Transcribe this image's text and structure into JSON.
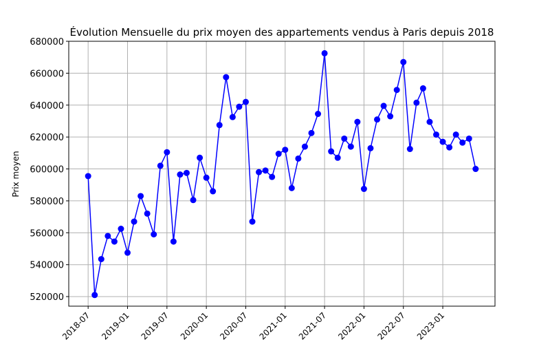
{
  "chart_data": {
    "type": "line",
    "title": "Évolution Mensuelle du prix moyen des appartements vendus à Paris depuis 2018",
    "xlabel": "",
    "ylabel": "Prix moyen",
    "ylim": [
      514000,
      680000
    ],
    "grid": true,
    "series_color": "#0000ff",
    "x_tick_labels": [
      "2018-07",
      "2019-01",
      "2019-07",
      "2020-01",
      "2020-07",
      "2021-01",
      "2021-07",
      "2022-01",
      "2022-07",
      "2023-01"
    ],
    "y_tick_labels": [
      "520000",
      "540000",
      "560000",
      "580000",
      "600000",
      "620000",
      "640000",
      "660000",
      "680000"
    ],
    "series": [
      {
        "x": [
          "2018-07",
          "2018-08",
          "2018-09",
          "2018-10",
          "2018-11",
          "2018-12",
          "2019-01",
          "2019-02",
          "2019-03",
          "2019-04",
          "2019-05",
          "2019-06",
          "2019-07",
          "2019-08",
          "2019-09",
          "2019-10",
          "2019-11",
          "2019-12",
          "2020-01",
          "2020-02",
          "2020-03",
          "2020-04",
          "2020-05",
          "2020-06",
          "2020-07",
          "2020-08",
          "2020-09",
          "2020-10",
          "2020-11",
          "2020-12",
          "2021-01",
          "2021-02",
          "2021-03",
          "2021-04",
          "2021-05",
          "2021-06",
          "2021-07",
          "2021-08",
          "2021-09",
          "2021-10",
          "2021-11",
          "2021-12",
          "2022-01",
          "2022-02",
          "2022-03",
          "2022-04",
          "2022-05",
          "2022-06",
          "2022-07",
          "2022-08",
          "2022-09",
          "2022-10",
          "2022-11",
          "2022-12",
          "2023-01",
          "2023-02",
          "2023-03",
          "2023-04",
          "2023-05",
          "2023-06"
        ],
        "values": [
          595500,
          521000,
          543500,
          558000,
          554500,
          562500,
          547500,
          567000,
          583000,
          572000,
          559000,
          602000,
          610500,
          554500,
          596500,
          597500,
          580500,
          607000,
          594500,
          586000,
          627500,
          657500,
          632500,
          639000,
          642000,
          567000,
          598000,
          599000,
          595000,
          609500,
          612000,
          588000,
          606500,
          614000,
          622500,
          634500,
          672500,
          611000,
          607000,
          619000,
          614000,
          629500,
          587500,
          613000,
          631000,
          639500,
          633000,
          649500,
          667000,
          612500,
          641500,
          650500,
          629500,
          621500,
          617000,
          613500,
          621500,
          616500,
          619000,
          600000
        ]
      }
    ]
  }
}
